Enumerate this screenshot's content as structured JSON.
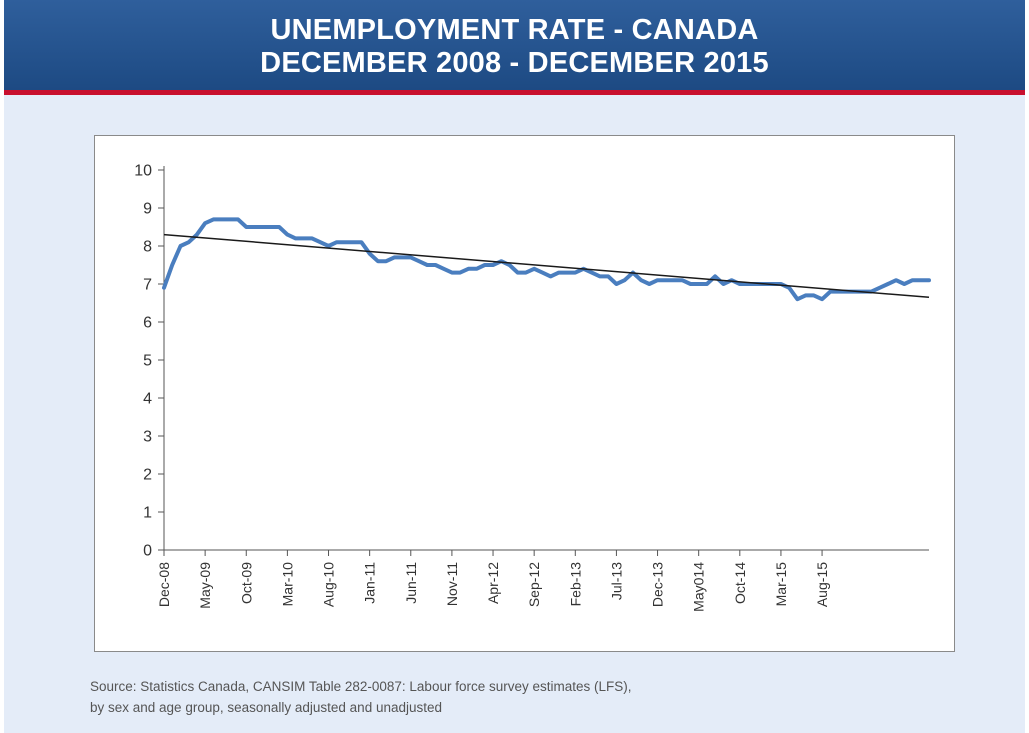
{
  "header": {
    "title_line1": "UNEMPLOYMENT RATE - CANADA",
    "title_line2": "DECEMBER 2008 - DECEMBER 2015"
  },
  "source": {
    "line1": "Source: Statistics Canada, CANSIM Table 282-0087: Labour force survey estimates (LFS),",
    "line2": "by sex and age group, seasonally adjusted and unadjusted"
  },
  "colors": {
    "banner": "#2b5b98",
    "banner_rule": "#c8102e",
    "background": "#e4ecf8",
    "series": "#4a7ebf",
    "trend": "#1a1a1a"
  },
  "chart_data": {
    "type": "line",
    "title": "",
    "xlabel": "",
    "ylabel": "",
    "ylim": [
      0,
      10
    ],
    "y_ticks": [
      0,
      1,
      2,
      3,
      4,
      5,
      6,
      7,
      8,
      9,
      10
    ],
    "x_tick_labels": [
      "Dec-08",
      "May-09",
      "Oct-09",
      "Mar-10",
      "Aug-10",
      "Jan-11",
      "Jun-11",
      "Nov-11",
      "Apr-12",
      "Sep-12",
      "Feb-13",
      "Jul-13",
      "Dec-13",
      "May014",
      "Oct-14",
      "Mar-15",
      "Aug-15"
    ],
    "x_tick_interval_months": 5,
    "grid": false,
    "legend": "none",
    "series": [
      {
        "values": [
          6.9,
          7.5,
          8.0,
          8.1,
          8.3,
          8.6,
          8.7,
          8.7,
          8.7,
          8.7,
          8.5,
          8.5,
          8.5,
          8.5,
          8.5,
          8.3,
          8.2,
          8.2,
          8.2,
          8.1,
          8.0,
          8.1,
          8.1,
          8.1,
          8.1,
          7.8,
          7.6,
          7.6,
          7.7,
          7.7,
          7.7,
          7.6,
          7.5,
          7.5,
          7.4,
          7.3,
          7.3,
          7.4,
          7.4,
          7.5,
          7.5,
          7.6,
          7.5,
          7.3,
          7.3,
          7.4,
          7.3,
          7.2,
          7.3,
          7.3,
          7.3,
          7.4,
          7.3,
          7.2,
          7.2,
          7.0,
          7.1,
          7.3,
          7.1,
          7.0,
          7.1,
          7.1,
          7.1,
          7.1,
          7.0,
          7.0,
          7.0,
          7.2,
          7.0,
          7.1,
          7.0,
          7.0,
          7.0,
          7.0,
          7.0,
          7.0,
          6.9,
          6.6,
          6.7,
          6.7,
          6.6,
          6.8,
          6.8,
          6.8,
          6.8,
          6.8,
          6.8,
          6.9,
          7.0,
          7.1,
          7.0,
          7.1,
          7.1,
          7.1
        ]
      },
      {
        "type": "trendline",
        "start": 8.3,
        "end": 6.65
      }
    ]
  }
}
